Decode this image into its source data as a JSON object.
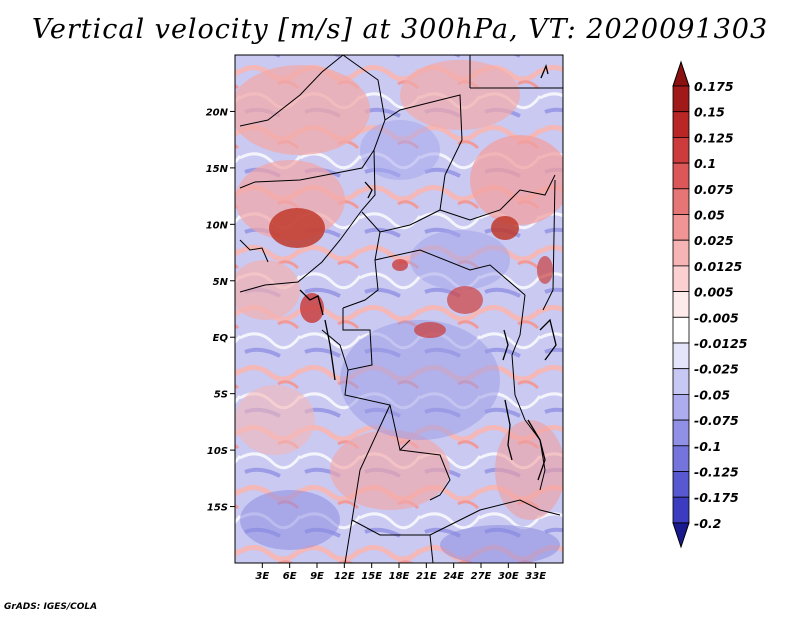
{
  "title": "Vertical velocity [m/s] at 300hPa, VT: 2020091303",
  "credit": "GrADS: IGES/COLA",
  "map": {
    "lon_range": [
      0,
      36
    ],
    "lat_range": [
      -20,
      25
    ],
    "x_ticks": [
      {
        "lon": 3,
        "label": "3E"
      },
      {
        "lon": 6,
        "label": "6E"
      },
      {
        "lon": 9,
        "label": "9E"
      },
      {
        "lon": 12,
        "label": "12E"
      },
      {
        "lon": 15,
        "label": "15E"
      },
      {
        "lon": 18,
        "label": "18E"
      },
      {
        "lon": 21,
        "label": "21E"
      },
      {
        "lon": 24,
        "label": "24E"
      },
      {
        "lon": 27,
        "label": "27E"
      },
      {
        "lon": 30,
        "label": "30E"
      },
      {
        "lon": 33,
        "label": "33E"
      }
    ],
    "y_ticks": [
      {
        "lat": 20,
        "label": "20N"
      },
      {
        "lat": 15,
        "label": "15N"
      },
      {
        "lat": 10,
        "label": "10N"
      },
      {
        "lat": 5,
        "label": "5N"
      },
      {
        "lat": 0,
        "label": "EQ"
      },
      {
        "lat": -5,
        "label": "5S"
      },
      {
        "lat": -10,
        "label": "10S"
      },
      {
        "lat": -15,
        "label": "15S"
      }
    ]
  },
  "colorbar": {
    "levels": [
      {
        "label": "0.175",
        "color": "#a11a1a"
      },
      {
        "label": "0.15",
        "color": "#b82626"
      },
      {
        "label": "0.125",
        "color": "#cc3c3c"
      },
      {
        "label": "0.1",
        "color": "#dc5858"
      },
      {
        "label": "0.075",
        "color": "#e67676"
      },
      {
        "label": "0.05",
        "color": "#f09494"
      },
      {
        "label": "0.025",
        "color": "#f6b4b4"
      },
      {
        "label": "0.0125",
        "color": "#fad0d0"
      },
      {
        "label": "0.005",
        "color": "#fdeaea"
      },
      {
        "label": "-0.005",
        "color": "#ffffff"
      },
      {
        "label": "-0.0125",
        "color": "#e4e4fa"
      },
      {
        "label": "-0.025",
        "color": "#c8c8f4"
      },
      {
        "label": "-0.05",
        "color": "#acacee"
      },
      {
        "label": "-0.075",
        "color": "#9090e6"
      },
      {
        "label": "-0.1",
        "color": "#7474dc"
      },
      {
        "label": "-0.125",
        "color": "#5858d0"
      },
      {
        "label": "-0.175",
        "color": "#3c3cc0"
      },
      {
        "label": "-0.2",
        "color": "#2828a8"
      }
    ],
    "top_arrow_color": "#8b1010",
    "bottom_arrow_color": "#1a1a90"
  }
}
